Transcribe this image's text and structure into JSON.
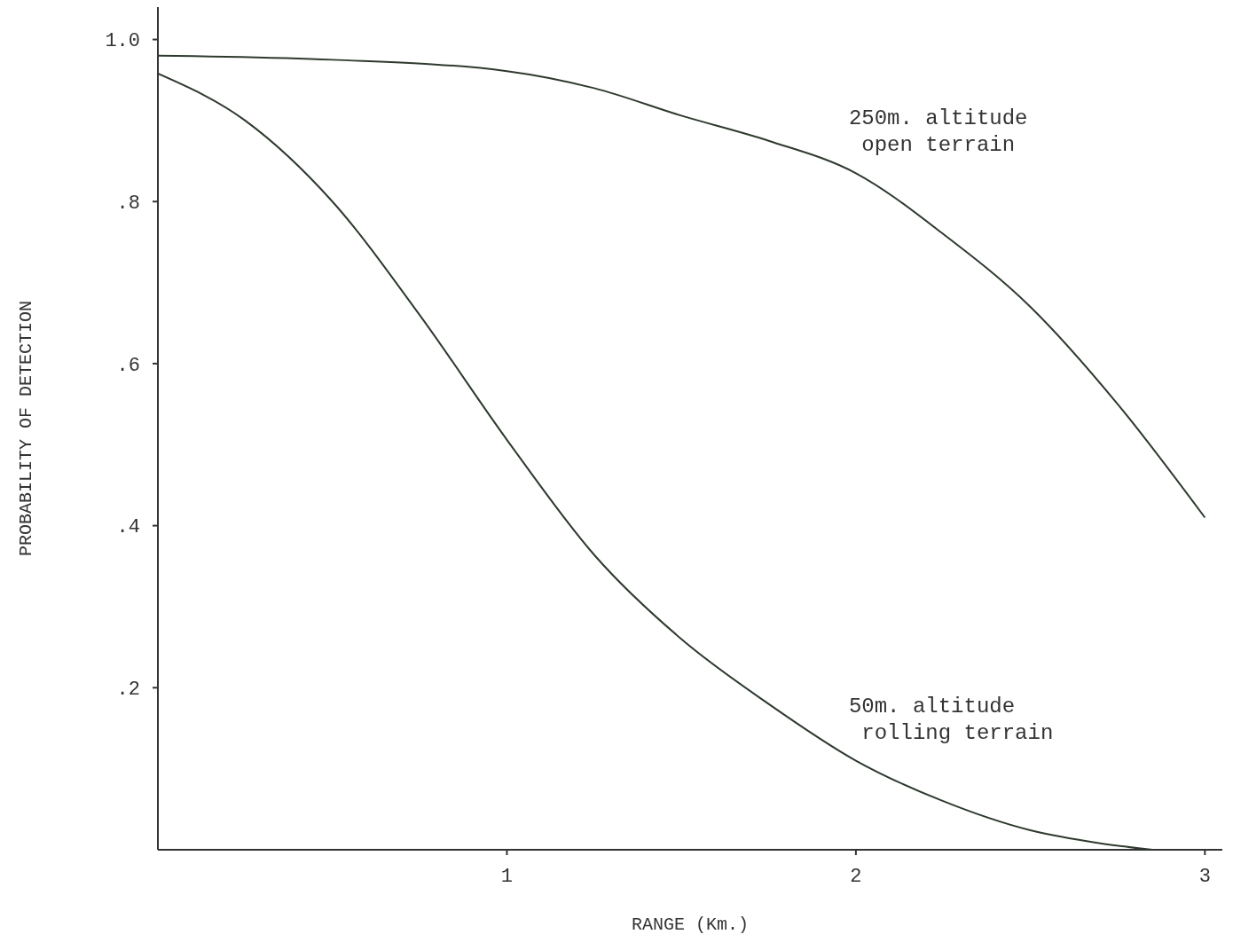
{
  "chart_data": {
    "type": "line",
    "xlabel": "RANGE (Km.)",
    "ylabel": "PROBABILITY OF DETECTION",
    "xlim": [
      0,
      3.05
    ],
    "ylim": [
      0,
      1.04
    ],
    "xticks": [
      1,
      2,
      3
    ],
    "yticks": [
      {
        "value": 0.2,
        "label": ".2"
      },
      {
        "value": 0.4,
        "label": ".4"
      },
      {
        "value": 0.6,
        "label": ".6"
      },
      {
        "value": 0.8,
        "label": ".8"
      },
      {
        "value": 1,
        "label": "1.0"
      }
    ],
    "grid": false,
    "marker": "none",
    "line_style": "solid",
    "series": [
      {
        "name": "250m. altitude\n open terrain",
        "color": "#2e3a2e",
        "x": [
          0,
          0.5,
          1,
          1.25,
          1.5,
          1.75,
          2,
          2.25,
          2.5,
          2.75,
          3
        ],
        "values": [
          0.98,
          0.975,
          0.961,
          0.94,
          0.906,
          0.875,
          0.835,
          0.76,
          0.67,
          0.55,
          0.41
        ]
      },
      {
        "name": "50m. altitude\n rolling terrain",
        "color": "#2e3a2e",
        "x": [
          0,
          0.25,
          0.5,
          0.75,
          1,
          1.25,
          1.5,
          1.75,
          2,
          2.25,
          2.5,
          2.7,
          2.85
        ],
        "values": [
          0.958,
          0.9,
          0.8,
          0.66,
          0.506,
          0.364,
          0.26,
          0.18,
          0.11,
          0.06,
          0.024,
          0.008,
          0
        ]
      }
    ]
  }
}
